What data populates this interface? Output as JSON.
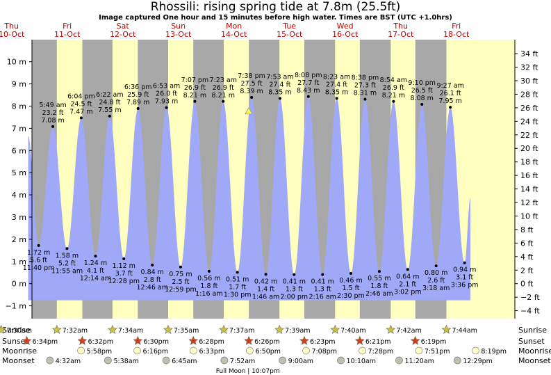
{
  "chart_data": {
    "type": "area",
    "title": "Rhossili: rising  spring tide at 7.8m (25.5ft)",
    "subtitle": "Image captured One hour and 15 minutes before high water. Times are BST (UTC +1.0hrs)",
    "y_left_unit": "m",
    "y_right_unit": "ft",
    "ylim_m": [
      -1.3,
      10.8
    ],
    "y_left_ticks": [
      -1,
      0,
      1,
      2,
      3,
      4,
      5,
      6,
      7,
      8,
      9,
      10
    ],
    "y_right_ticks": [
      -4,
      -2,
      0,
      2,
      4,
      6,
      8,
      10,
      12,
      14,
      16,
      18,
      20,
      22,
      24,
      26,
      28,
      30,
      32,
      34
    ],
    "days": [
      {
        "dow": "Thu",
        "date": "10-Oct"
      },
      {
        "dow": "Fri",
        "date": "11-Oct"
      },
      {
        "dow": "Sat",
        "date": "12-Oct"
      },
      {
        "dow": "Sun",
        "date": "13-Oct"
      },
      {
        "dow": "Mon",
        "date": "14-Oct"
      },
      {
        "dow": "Tue",
        "date": "15-Oct"
      },
      {
        "dow": "Wed",
        "date": "16-Oct"
      },
      {
        "dow": "Thu",
        "date": "17-Oct"
      },
      {
        "dow": "Fri",
        "date": "18-Oct"
      }
    ],
    "series": [
      {
        "values": [
          {
            "kind": "low",
            "time": "11:40 pm",
            "hours": 23.67,
            "m": 1.72,
            "m_label": "1.72 m",
            "ft_label": "5.6 ft"
          },
          {
            "kind": "high",
            "time": "5:49 am",
            "hours": 29.82,
            "m": 7.08,
            "m_label": "7.08 m",
            "ft_label": "23.2 ft"
          },
          {
            "kind": "low",
            "time": "11:55 am",
            "hours": 35.92,
            "m": 1.58,
            "m_label": "1.58 m",
            "ft_label": "5.2 ft"
          },
          {
            "kind": "high",
            "time": "6:04 pm",
            "hours": 42.07,
            "m": 7.47,
            "m_label": "7.47 m",
            "ft_label": "24.5 ft"
          },
          {
            "kind": "low",
            "time": "12:14 am",
            "hours": 48.23,
            "m": 1.24,
            "m_label": "1.24 m",
            "ft_label": "4.1 ft"
          },
          {
            "kind": "high",
            "time": "6:22 am",
            "hours": 54.37,
            "m": 7.55,
            "m_label": "7.55 m",
            "ft_label": "24.8 ft"
          },
          {
            "kind": "low",
            "time": "12:28 pm",
            "hours": 60.47,
            "m": 1.12,
            "m_label": "1.12 m",
            "ft_label": "3.7 ft"
          },
          {
            "kind": "high",
            "time": "6:36 pm",
            "hours": 66.6,
            "m": 7.89,
            "m_label": "7.89 m",
            "ft_label": "25.9 ft"
          },
          {
            "kind": "low",
            "time": "12:46 am",
            "hours": 72.77,
            "m": 0.84,
            "m_label": "0.84 m",
            "ft_label": "2.8 ft"
          },
          {
            "kind": "high",
            "time": "6:53 am",
            "hours": 78.88,
            "m": 7.93,
            "m_label": "7.93 m",
            "ft_label": "26.0 ft"
          },
          {
            "kind": "low",
            "time": "12:59 pm",
            "hours": 84.98,
            "m": 0.75,
            "m_label": "0.75 m",
            "ft_label": "2.5 ft"
          },
          {
            "kind": "high",
            "time": "7:07 pm",
            "hours": 91.12,
            "m": 8.21,
            "m_label": "8.21 m",
            "ft_label": "26.9 ft"
          },
          {
            "kind": "low",
            "time": "1:16 am",
            "hours": 97.27,
            "m": 0.56,
            "m_label": "0.56 m",
            "ft_label": "1.8 ft"
          },
          {
            "kind": "high",
            "time": "7:23 am",
            "hours": 103.38,
            "m": 8.21,
            "m_label": "8.21 m",
            "ft_label": "26.9 ft"
          },
          {
            "kind": "low",
            "time": "1:30 pm",
            "hours": 109.5,
            "m": 0.51,
            "m_label": "0.51 m",
            "ft_label": "1.7 ft"
          },
          {
            "kind": "high",
            "time": "7:38 pm",
            "hours": 115.63,
            "m": 8.39,
            "m_label": "8.39 m",
            "ft_label": "27.5 ft"
          },
          {
            "kind": "low",
            "time": "1:46 am",
            "hours": 121.77,
            "m": 0.42,
            "m_label": "0.42 m",
            "ft_label": "1.4 ft"
          },
          {
            "kind": "high",
            "time": "7:53 am",
            "hours": 127.88,
            "m": 8.35,
            "m_label": "8.35 m",
            "ft_label": "27.4 ft"
          },
          {
            "kind": "low",
            "time": "2:00 pm",
            "hours": 134.0,
            "m": 0.41,
            "m_label": "0.41 m",
            "ft_label": "1.3 ft"
          },
          {
            "kind": "high",
            "time": "8:08 pm",
            "hours": 140.13,
            "m": 8.43,
            "m_label": "8.43 m",
            "ft_label": "27.7 ft"
          },
          {
            "kind": "low",
            "time": "2:16 am",
            "hours": 146.27,
            "m": 0.41,
            "m_label": "0.41 m",
            "ft_label": "1.3 ft"
          },
          {
            "kind": "high",
            "time": "8:23 am",
            "hours": 152.38,
            "m": 8.35,
            "m_label": "8.35 m",
            "ft_label": "27.4 ft"
          },
          {
            "kind": "low",
            "time": "2:30 pm",
            "hours": 158.5,
            "m": 0.46,
            "m_label": "0.46 m",
            "ft_label": "1.5 ft"
          },
          {
            "kind": "high",
            "time": "8:38 pm",
            "hours": 164.63,
            "m": 8.31,
            "m_label": "8.31 m",
            "ft_label": "27.3 ft"
          },
          {
            "kind": "low",
            "time": "2:46 am",
            "hours": 170.77,
            "m": 0.55,
            "m_label": "0.55 m",
            "ft_label": "1.8 ft"
          },
          {
            "kind": "high",
            "time": "8:54 am",
            "hours": 176.9,
            "m": 8.21,
            "m_label": "8.21 m",
            "ft_label": "26.9 ft"
          },
          {
            "kind": "low",
            "time": "3:02 pm",
            "hours": 183.03,
            "m": 0.64,
            "m_label": "0.64 m",
            "ft_label": "2.1 ft"
          },
          {
            "kind": "high",
            "time": "9:10 pm",
            "hours": 189.17,
            "m": 8.08,
            "m_label": "8.08 m",
            "ft_label": "26.5 ft"
          },
          {
            "kind": "low",
            "time": "3:18 am",
            "hours": 195.3,
            "m": 0.8,
            "m_label": "0.80 m",
            "ft_label": "2.6 ft"
          },
          {
            "kind": "high",
            "time": "9:27 am",
            "hours": 201.45,
            "m": 7.95,
            "m_label": "7.95 m",
            "ft_label": "26.1 ft"
          },
          {
            "kind": "low",
            "time": "3:36 pm",
            "hours": 207.6,
            "m": 0.94,
            "m_label": "0.94 m",
            "ft_label": "3.1 ft"
          }
        ]
      }
    ],
    "current_marker": {
      "m": 7.8
    },
    "footer": {
      "labels": [
        "Sunrise",
        "Sunset",
        "Moonrise",
        "Moonset"
      ],
      "sunrise": [
        "7:30am",
        "7:32am",
        "7:34am",
        "7:35am",
        "7:37am",
        "7:39am",
        "7:40am",
        "7:42am",
        "7:44am"
      ],
      "sunset": [
        "6:34pm",
        "6:32pm",
        "6:30pm",
        "6:28pm",
        "6:26pm",
        "6:23pm",
        "6:21pm",
        "6:19pm"
      ],
      "moonrise": [
        "5:58pm",
        "6:16pm",
        "6:33pm",
        "6:50pm",
        "7:08pm",
        "7:28pm",
        "7:51pm",
        "8:19pm"
      ],
      "moonset": [
        "4:32am",
        "5:38am",
        "6:45am",
        "7:52am",
        "9:00am",
        "10:10am",
        "11:20am",
        "12:29pm"
      ],
      "full_moon": "Full Moon | 10:07pm"
    },
    "colors": {
      "day": "#ffffc0",
      "night": "#a8a8a8",
      "water": "#a0a8f8",
      "day_label": "#c00000",
      "sun_star": "#c8c040",
      "sunset_star": "#d04020",
      "moon_light": "#ffffc8",
      "moon_dark": "#c0c0b0",
      "marker": "#ffff40"
    }
  }
}
